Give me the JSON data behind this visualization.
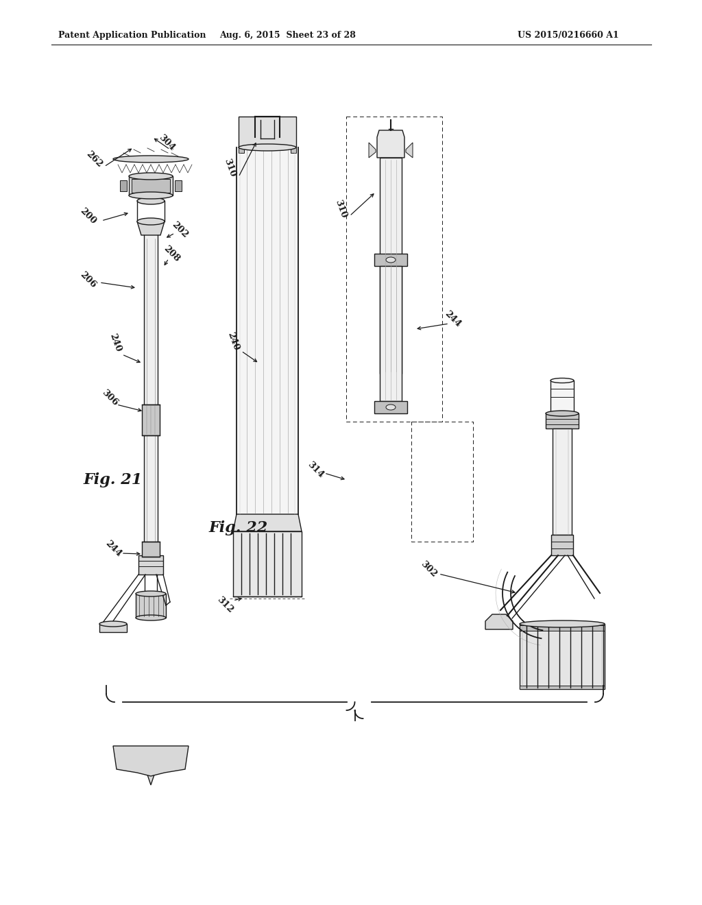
{
  "header_left": "Patent Application Publication",
  "header_center": "Aug. 6, 2015  Sheet 23 of 28",
  "header_right": "US 2015/0216660 A1",
  "fig21_label": "Fig. 21",
  "fig22_label": "Fig. 22",
  "background_color": "#ffffff",
  "line_color": "#1a1a1a",
  "gray_fill": "#d8d8d8",
  "gray_dark": "#aaaaaa",
  "gray_light": "#eeeeee"
}
